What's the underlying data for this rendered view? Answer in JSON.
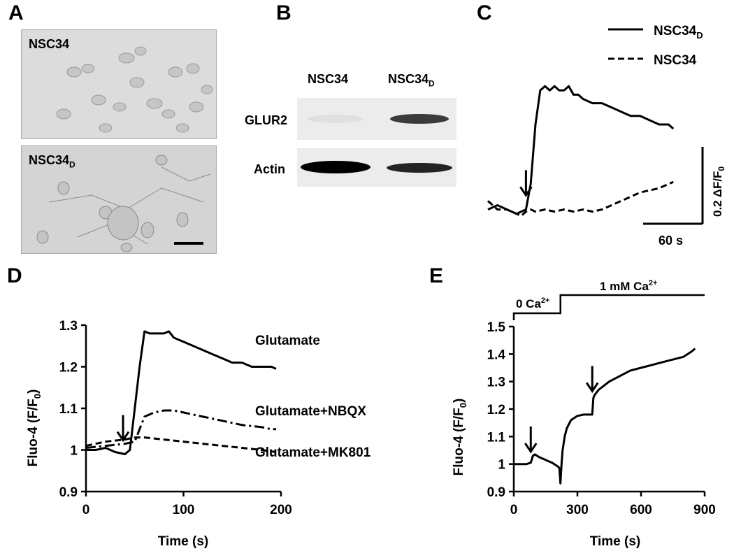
{
  "panels": {
    "A": {
      "letter": "A",
      "images": [
        {
          "label": "NSC34",
          "label_sub": ""
        },
        {
          "label": "NSC34",
          "label_sub": "D"
        }
      ]
    },
    "B": {
      "letter": "B",
      "columns": [
        {
          "label": "NSC34",
          "label_sub": ""
        },
        {
          "label": "NSC34",
          "label_sub": "D"
        }
      ],
      "rows": [
        {
          "label": "GLUR2",
          "band_strength": [
            0.05,
            0.75
          ]
        },
        {
          "label": "Actin",
          "band_strength": [
            1.0,
            0.85
          ]
        }
      ]
    },
    "C": {
      "letter": "C"
    },
    "D": {
      "letter": "D"
    },
    "E": {
      "letter": "E"
    }
  },
  "chart_data": [
    {
      "panel": "C",
      "type": "line",
      "legend": [
        {
          "label": "NSC34",
          "label_sub": "D",
          "style": "solid"
        },
        {
          "label": "NSC34",
          "label_sub": "",
          "style": "dashed"
        }
      ],
      "legend_position": "top-right",
      "scale_bar": {
        "x_label": "60 s",
        "x_value_s": 60,
        "y_label_main": "0.2 ΔF/F",
        "y_label_sub": "0",
        "y_value": 0.2
      },
      "xlim": [
        0,
        200
      ],
      "ylim": [
        0.95,
        1.32
      ],
      "arrow_at": {
        "x": 40,
        "y": 1.03
      },
      "series": [
        {
          "style": "solid",
          "x": [
            0,
            10,
            20,
            30,
            40,
            45,
            50,
            55,
            60,
            65,
            70,
            75,
            80,
            85,
            90,
            95,
            100,
            110,
            120,
            130,
            140,
            150,
            160,
            170,
            180,
            190,
            195
          ],
          "y": [
            1.0,
            1.01,
            1.0,
            0.99,
            1.0,
            1.06,
            1.2,
            1.28,
            1.29,
            1.28,
            1.29,
            1.28,
            1.28,
            1.29,
            1.27,
            1.27,
            1.26,
            1.25,
            1.25,
            1.24,
            1.23,
            1.22,
            1.22,
            1.21,
            1.2,
            1.2,
            1.19
          ]
        },
        {
          "style": "dashed",
          "x": [
            0,
            5,
            10,
            20,
            30,
            35,
            40,
            45,
            50,
            60,
            70,
            80,
            90,
            100,
            110,
            120,
            130,
            140,
            150,
            160,
            170,
            180,
            190,
            195
          ],
          "y": [
            1.02,
            1.01,
            1.0,
            1.0,
            0.99,
            0.985,
            0.995,
            1.0,
            0.995,
            1.0,
            0.995,
            1.0,
            0.995,
            1.0,
            0.995,
            1.0,
            1.01,
            1.02,
            1.03,
            1.04,
            1.045,
            1.05,
            1.06,
            1.065
          ]
        }
      ]
    },
    {
      "panel": "D",
      "type": "line",
      "ylabel": "Fluo-4 (F/F",
      "ylabel_sub": "0",
      "ylabel_end": ")",
      "xlabel": "Time (s)",
      "xlim": [
        0,
        200
      ],
      "ylim": [
        0.9,
        1.3
      ],
      "xticks": [
        0,
        100,
        200
      ],
      "xtick_labels": [
        "0",
        "100",
        "200"
      ],
      "yticks": [
        0.9,
        1.0,
        1.1,
        1.2,
        1.3
      ],
      "ytick_labels": [
        "0.9",
        "1",
        "1.1",
        "1.2",
        "1.3"
      ],
      "arrow_at": {
        "x": 38,
        "y": 1.02
      },
      "series": [
        {
          "name": "Glutamate",
          "style": "solid",
          "x": [
            0,
            10,
            20,
            30,
            40,
            45,
            50,
            55,
            60,
            65,
            70,
            80,
            85,
            90,
            100,
            110,
            120,
            130,
            140,
            150,
            160,
            170,
            180,
            190,
            195
          ],
          "y": [
            1.0,
            1.0,
            1.005,
            0.995,
            0.99,
            1.0,
            1.1,
            1.2,
            1.285,
            1.28,
            1.28,
            1.28,
            1.285,
            1.27,
            1.26,
            1.25,
            1.24,
            1.23,
            1.22,
            1.21,
            1.21,
            1.2,
            1.2,
            1.2,
            1.195
          ]
        },
        {
          "name": "Glutamate+NBQX",
          "style": "dashdot",
          "x": [
            0,
            20,
            40,
            50,
            55,
            60,
            70,
            80,
            90,
            100,
            120,
            140,
            160,
            180,
            190,
            195
          ],
          "y": [
            1.005,
            1.01,
            1.015,
            1.02,
            1.05,
            1.08,
            1.09,
            1.095,
            1.095,
            1.09,
            1.08,
            1.07,
            1.06,
            1.055,
            1.05,
            1.05
          ]
        },
        {
          "name": "Glutamate+MK801",
          "style": "dashed",
          "x": [
            0,
            20,
            40,
            50,
            55,
            60,
            80,
            100,
            120,
            140,
            160,
            180,
            195
          ],
          "y": [
            1.01,
            1.02,
            1.025,
            1.03,
            1.03,
            1.03,
            1.025,
            1.02,
            1.015,
            1.01,
            1.005,
            1.0,
            0.995
          ]
        }
      ]
    },
    {
      "panel": "E",
      "type": "line",
      "ylabel": "Fluo-4 (F/F",
      "ylabel_sub": "0",
      "ylabel_end": ")",
      "xlabel": "Time (s)",
      "xlim": [
        0,
        900
      ],
      "ylim": [
        0.9,
        1.5
      ],
      "xticks": [
        0,
        300,
        600,
        900
      ],
      "xtick_labels": [
        "0",
        "300",
        "600",
        "900"
      ],
      "yticks": [
        0.9,
        1.0,
        1.1,
        1.2,
        1.3,
        1.4,
        1.5
      ],
      "ytick_labels": [
        "0.9",
        "1",
        "1.1",
        "1.2",
        "1.3",
        "1.4",
        "1.5"
      ],
      "protocol": [
        {
          "label": "0 Ca",
          "sup": "2+",
          "from": 0,
          "to": 220
        },
        {
          "label": "1 mM Ca",
          "sup": "2+",
          "from": 220,
          "to": 900
        }
      ],
      "arrows_at": [
        {
          "x": 80,
          "y": 1.04
        },
        {
          "x": 370,
          "y": 1.26
        }
      ],
      "series": [
        {
          "style": "solid",
          "x": [
            0,
            30,
            60,
            80,
            90,
            100,
            120,
            150,
            180,
            200,
            210,
            215,
            220,
            225,
            230,
            240,
            250,
            270,
            300,
            330,
            360,
            370,
            375,
            380,
            400,
            450,
            500,
            550,
            600,
            650,
            700,
            750,
            800,
            840,
            855
          ],
          "y": [
            1.0,
            1.0,
            1.0,
            1.005,
            1.03,
            1.035,
            1.025,
            1.015,
            1.005,
            0.995,
            0.99,
            0.985,
            0.93,
            1.0,
            1.05,
            1.1,
            1.13,
            1.16,
            1.175,
            1.18,
            1.18,
            1.18,
            1.24,
            1.25,
            1.27,
            1.3,
            1.32,
            1.34,
            1.35,
            1.36,
            1.37,
            1.38,
            1.39,
            1.41,
            1.42
          ]
        }
      ]
    }
  ]
}
